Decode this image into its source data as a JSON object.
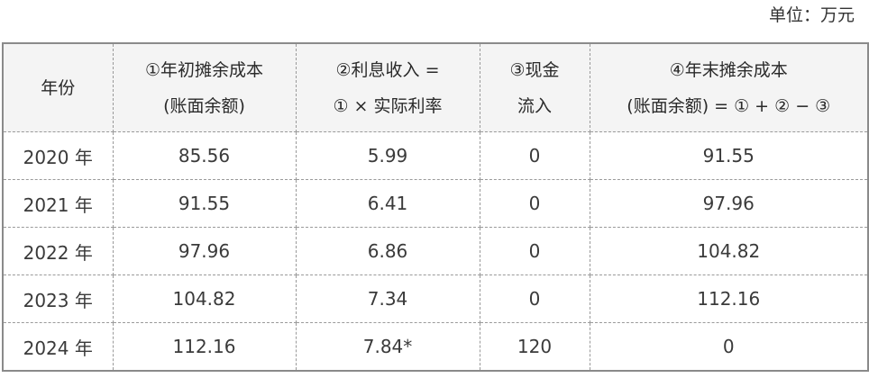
{
  "unit_label": "单位：万元",
  "table": {
    "headers": [
      {
        "line1": "年份",
        "line2": ""
      },
      {
        "line1": "①年初摊余成本",
        "line2": "(账面余额)"
      },
      {
        "line1": "②利息收入 =",
        "line2": "① × 实际利率"
      },
      {
        "line1": "③现金",
        "line2": "流入"
      },
      {
        "line1": "④年末摊余成本",
        "line2": "(账面余额) = ① + ② − ③"
      }
    ],
    "rows": [
      [
        "2020 年",
        "85.56",
        "5.99",
        "0",
        "91.55"
      ],
      [
        "2021 年",
        "91.55",
        "6.41",
        "0",
        "97.96"
      ],
      [
        "2022 年",
        "97.96",
        "6.86",
        "0",
        "104.82"
      ],
      [
        "2023 年",
        "104.82",
        "7.34",
        "0",
        "112.16"
      ],
      [
        "2024 年",
        "112.16",
        "7.84*",
        "120",
        "0"
      ]
    ]
  }
}
